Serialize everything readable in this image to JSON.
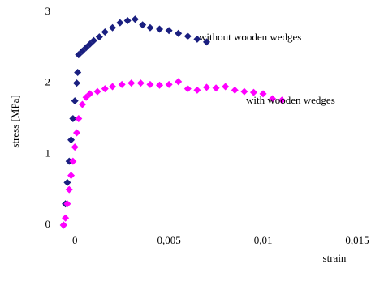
{
  "chart_data": {
    "type": "scatter",
    "x_label": "strain",
    "y_label": "stress [MPa]",
    "xlim": [
      -0.001,
      0.015
    ],
    "ylim": [
      0,
      3
    ],
    "xticks": [
      0,
      {
        "value": 0.005,
        "label": "0,005"
      },
      {
        "value": 0.01,
        "label": "0,01"
      },
      {
        "value": 0.015,
        "label": "0,015"
      }
    ],
    "yticks": [
      0,
      1,
      2,
      3
    ],
    "series": [
      {
        "name": "without wooden wedges",
        "color": "#1a1f80",
        "x": [
          -0.0006,
          -0.0005,
          -0.0004,
          -0.0003,
          -0.0002,
          -0.0001,
          0,
          0.0001,
          0.00015,
          0.0002,
          0.0004,
          0.0006,
          0.0008,
          0.001,
          0.0013,
          0.0016,
          0.002,
          0.0024,
          0.0028,
          0.0032,
          0.0036,
          0.004,
          0.0045,
          0.005,
          0.0055,
          0.006,
          0.0065,
          0.007
        ],
        "values": [
          0,
          0.3,
          0.6,
          0.9,
          1.2,
          1.5,
          1.75,
          2.0,
          2.15,
          2.4,
          2.45,
          2.5,
          2.55,
          2.6,
          2.65,
          2.72,
          2.78,
          2.85,
          2.88,
          2.9,
          2.82,
          2.78,
          2.76,
          2.74,
          2.7,
          2.66,
          2.62,
          2.58
        ]
      },
      {
        "name": "with wooden wedges",
        "color": "#ff00ff",
        "x": [
          -0.0006,
          -0.0005,
          -0.0004,
          -0.0003,
          -0.0002,
          -0.0001,
          0,
          0.0001,
          0.0002,
          0.0004,
          0.0006,
          0.0008,
          0.0012,
          0.0016,
          0.002,
          0.0025,
          0.003,
          0.0035,
          0.004,
          0.0045,
          0.005,
          0.0055,
          0.006,
          0.0065,
          0.007,
          0.0075,
          0.008,
          0.0085,
          0.009,
          0.0095,
          0.01,
          0.0105,
          0.011
        ],
        "values": [
          0,
          0.1,
          0.3,
          0.5,
          0.7,
          0.9,
          1.1,
          1.3,
          1.5,
          1.7,
          1.8,
          1.85,
          1.88,
          1.92,
          1.95,
          1.98,
          2.0,
          2.0,
          1.98,
          1.97,
          1.98,
          2.02,
          1.92,
          1.9,
          1.94,
          1.93,
          1.95,
          1.9,
          1.88,
          1.87,
          1.85,
          1.78,
          1.76
        ]
      }
    ]
  }
}
